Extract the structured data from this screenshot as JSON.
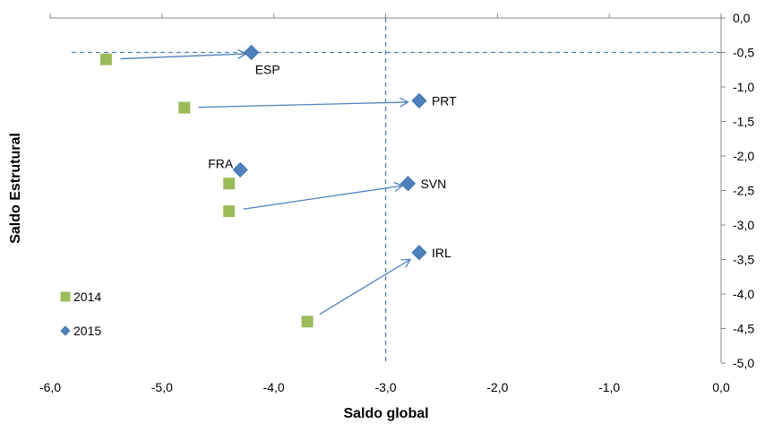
{
  "chart_data": {
    "type": "scatter",
    "xlabel": "Saldo global",
    "ylabel": "Saldo Estrutural",
    "xlim": [
      -6.0,
      0.0
    ],
    "ylim": [
      -5.0,
      0.0
    ],
    "x_ticks": [
      "-6,0",
      "-5,0",
      "-4,0",
      "-3,0",
      "-2,0",
      "-1,0",
      "0,0"
    ],
    "y_ticks": [
      "0,0",
      "-0,5",
      "-1,0",
      "-1,5",
      "-2,0",
      "-2,5",
      "-3,0",
      "-3,5",
      "-4,0",
      "-4,5",
      "-5,0"
    ],
    "x_tick_values": [
      -6,
      -5,
      -4,
      -3,
      -2,
      -1,
      0
    ],
    "y_tick_values": [
      0,
      -0.5,
      -1,
      -1.5,
      -2,
      -2.5,
      -3,
      -3.5,
      -4,
      -4.5,
      -5
    ],
    "y_axis_position": "right",
    "x_axis_position": "top",
    "grid": false,
    "legend_position": "bottom-left",
    "reference_lines": {
      "x": -3.0,
      "y": -0.5,
      "style": "dashed",
      "color": "#4f81bd"
    },
    "series": [
      {
        "name": "2014",
        "marker": "square",
        "color": "#9bbb59",
        "points": [
          {
            "country": "ESP",
            "x": -5.5,
            "y": -0.6
          },
          {
            "country": "PRT",
            "x": -4.8,
            "y": -1.3
          },
          {
            "country": "FRA",
            "x": -4.4,
            "y": -2.4
          },
          {
            "country": "SVN",
            "x": -4.4,
            "y": -2.8
          },
          {
            "country": "IRL",
            "x": -3.7,
            "y": -4.4
          }
        ]
      },
      {
        "name": "2015",
        "marker": "diamond",
        "color": "#4f81bd",
        "points": [
          {
            "country": "ESP",
            "x": -4.2,
            "y": -0.5,
            "label": "ESP",
            "label_side": "below-right"
          },
          {
            "country": "PRT",
            "x": -2.7,
            "y": -1.2,
            "label": "PRT",
            "label_side": "right"
          },
          {
            "country": "FRA",
            "x": -4.3,
            "y": -2.2,
            "label": "FRA",
            "label_side": "above-left"
          },
          {
            "country": "SVN",
            "x": -2.8,
            "y": -2.4,
            "label": "SVN",
            "label_side": "right"
          },
          {
            "country": "IRL",
            "x": -2.7,
            "y": -3.4,
            "label": "IRL",
            "label_side": "right"
          }
        ]
      }
    ],
    "arrows": [
      {
        "from": [
          -5.5,
          -0.6
        ],
        "to": [
          -4.25,
          -0.52
        ]
      },
      {
        "from": [
          -4.8,
          -1.3
        ],
        "to": [
          -2.8,
          -1.22
        ]
      },
      {
        "from": [
          -4.4,
          -2.8
        ],
        "to": [
          -2.85,
          -2.43
        ]
      },
      {
        "from": [
          -3.7,
          -4.4
        ],
        "to": [
          -2.78,
          -3.5
        ]
      }
    ],
    "arrow_color": "#4f81bd"
  }
}
